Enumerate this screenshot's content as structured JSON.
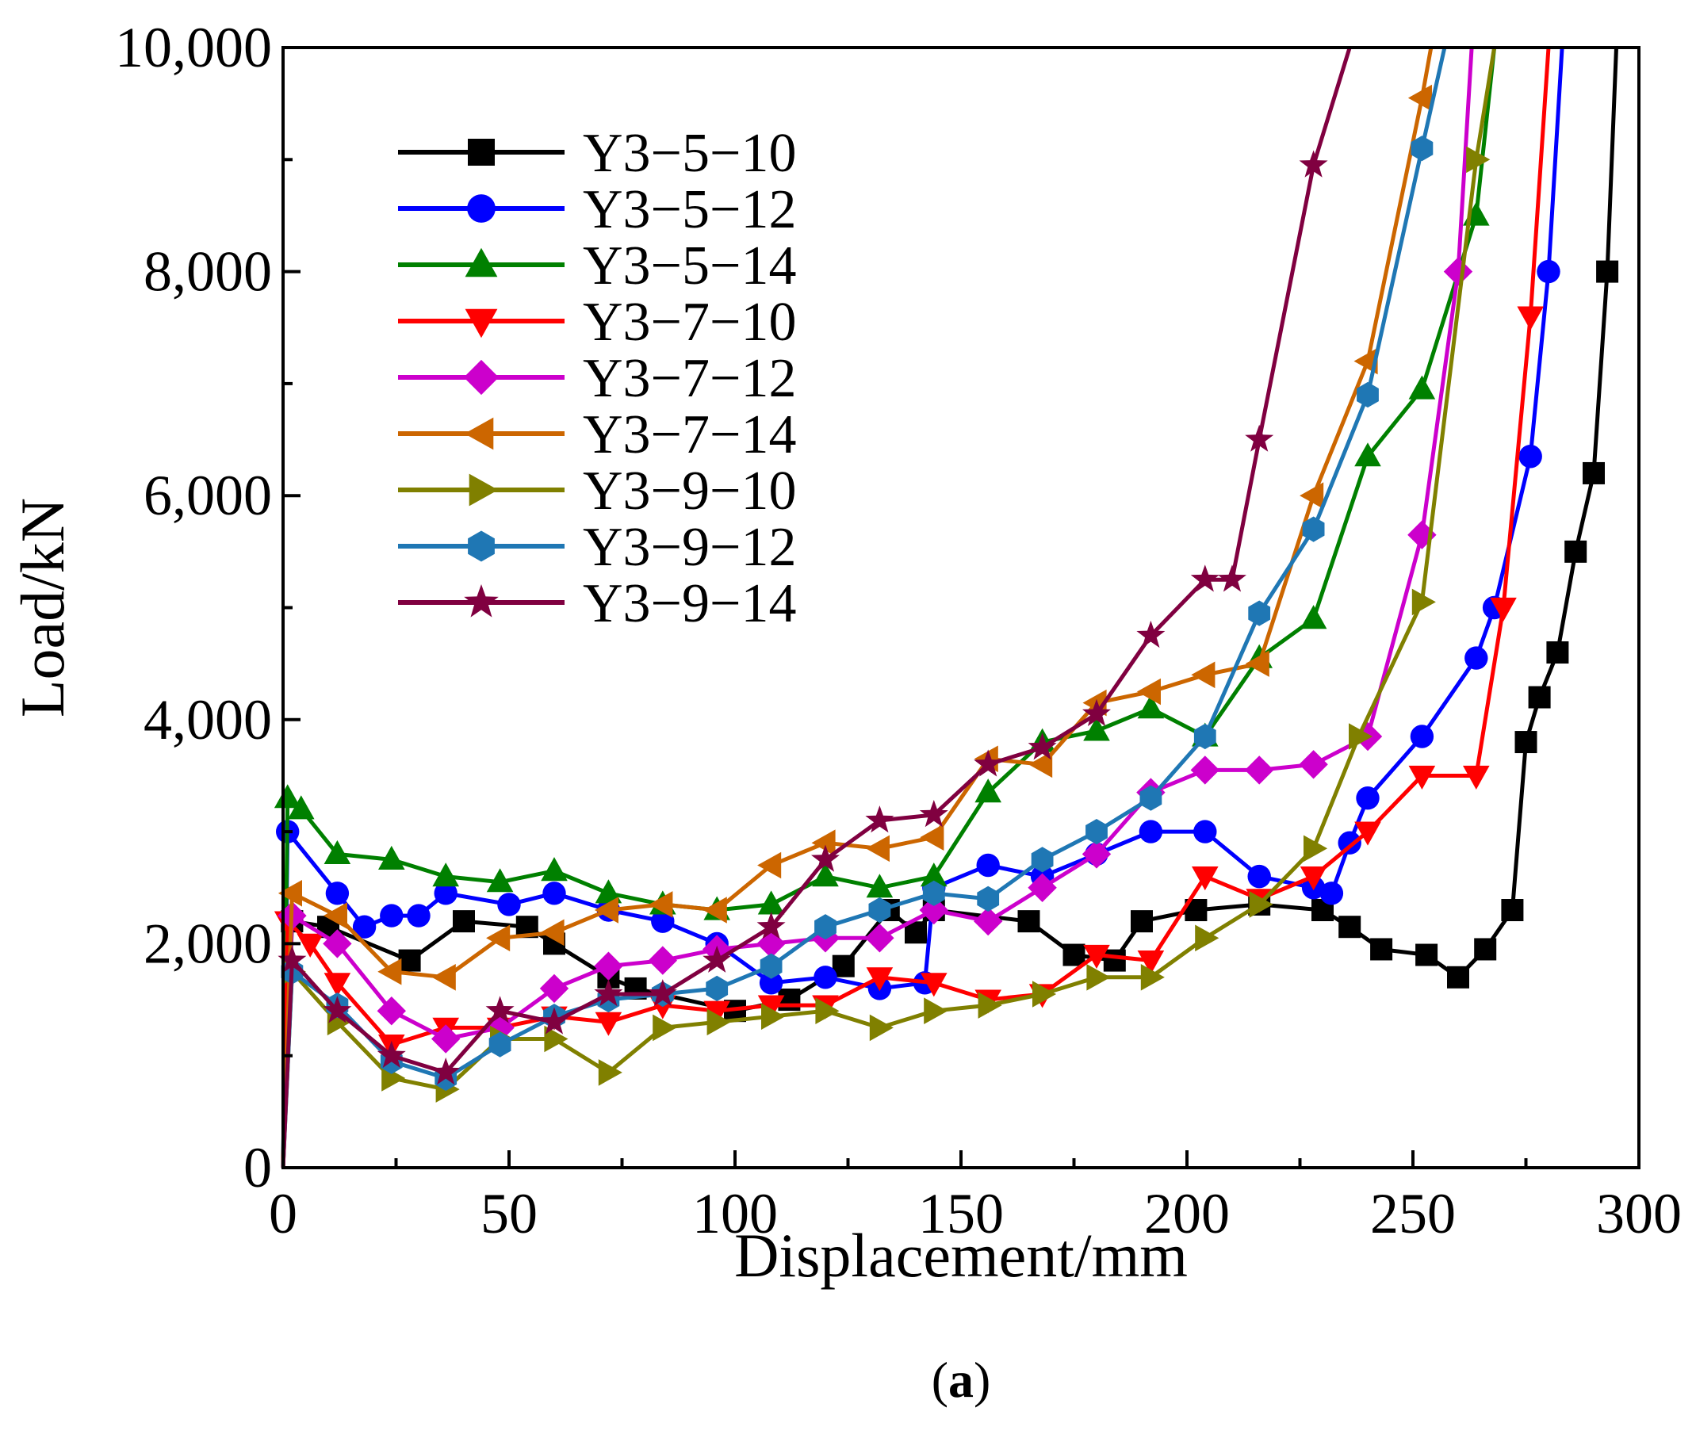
{
  "chart_data": {
    "type": "line",
    "title": "",
    "xlabel": "Displacement/mm",
    "ylabel": "Load/kN",
    "xlim": [
      0,
      300
    ],
    "ylim": [
      0,
      10000
    ],
    "x_ticks": [
      "0",
      "50",
      "100",
      "150",
      "200",
      "250",
      "300"
    ],
    "y_ticks": [
      "0",
      "2,000",
      "4,000",
      "6,000",
      "8,000",
      "10,000"
    ],
    "caption": {
      "open": "(",
      "letter": "a",
      "close": ")"
    },
    "legend_position": "top-left",
    "series": [
      {
        "name": "Y3−5−10",
        "color": "#000000",
        "marker": "square",
        "points": [
          [
            0,
            0
          ],
          [
            2,
            2200
          ],
          [
            10,
            2150
          ],
          [
            28,
            1850
          ],
          [
            40,
            2200
          ],
          [
            54,
            2150
          ],
          [
            60,
            2000
          ],
          [
            72,
            1700
          ],
          [
            78,
            1600
          ],
          [
            100,
            1400
          ],
          [
            112,
            1500
          ],
          [
            124,
            1800
          ],
          [
            134,
            2300
          ],
          [
            140,
            2100
          ],
          [
            144,
            2300
          ],
          [
            165,
            2200
          ],
          [
            175,
            1900
          ],
          [
            184,
            1850
          ],
          [
            190,
            2200
          ],
          [
            202,
            2300
          ],
          [
            216,
            2350
          ],
          [
            230,
            2300
          ],
          [
            236,
            2150
          ],
          [
            243,
            1950
          ],
          [
            253,
            1900
          ],
          [
            260,
            1700
          ],
          [
            266,
            1950
          ],
          [
            272,
            2300
          ],
          [
            275,
            3800
          ],
          [
            278,
            4200
          ],
          [
            282,
            4600
          ],
          [
            286,
            5500
          ],
          [
            290,
            6200
          ],
          [
            293,
            8000
          ],
          [
            295,
            10000
          ]
        ]
      },
      {
        "name": "Y3−5−12",
        "color": "#0000ff",
        "marker": "circle",
        "points": [
          [
            0,
            0
          ],
          [
            1,
            3000
          ],
          [
            12,
            2450
          ],
          [
            18,
            2150
          ],
          [
            24,
            2250
          ],
          [
            30,
            2250
          ],
          [
            36,
            2450
          ],
          [
            50,
            2350
          ],
          [
            60,
            2450
          ],
          [
            72,
            2300
          ],
          [
            84,
            2200
          ],
          [
            96,
            2000
          ],
          [
            108,
            1650
          ],
          [
            120,
            1700
          ],
          [
            132,
            1600
          ],
          [
            142,
            1650
          ],
          [
            144,
            2500
          ],
          [
            156,
            2700
          ],
          [
            168,
            2600
          ],
          [
            180,
            2800
          ],
          [
            192,
            3000
          ],
          [
            204,
            3000
          ],
          [
            216,
            2600
          ],
          [
            228,
            2500
          ],
          [
            232,
            2450
          ],
          [
            236,
            2900
          ],
          [
            240,
            3300
          ],
          [
            252,
            3850
          ],
          [
            264,
            4550
          ],
          [
            268,
            5000
          ],
          [
            276,
            6350
          ],
          [
            280,
            8000
          ],
          [
            283,
            10000
          ]
        ]
      },
      {
        "name": "Y3−5−14",
        "color": "#008000",
        "marker": "triangle-up",
        "points": [
          [
            0,
            0
          ],
          [
            1,
            3300
          ],
          [
            4,
            3200
          ],
          [
            12,
            2800
          ],
          [
            24,
            2750
          ],
          [
            36,
            2600
          ],
          [
            48,
            2550
          ],
          [
            60,
            2650
          ],
          [
            72,
            2450
          ],
          [
            84,
            2350
          ],
          [
            96,
            2300
          ],
          [
            108,
            2350
          ],
          [
            120,
            2600
          ],
          [
            132,
            2500
          ],
          [
            144,
            2600
          ],
          [
            156,
            3350
          ],
          [
            168,
            3800
          ],
          [
            180,
            3900
          ],
          [
            192,
            4100
          ],
          [
            204,
            3850
          ],
          [
            216,
            4550
          ],
          [
            228,
            4900
          ],
          [
            240,
            6350
          ],
          [
            252,
            6950
          ],
          [
            264,
            8500
          ],
          [
            268,
            10000
          ]
        ]
      },
      {
        "name": "Y3−7−10",
        "color": "#ff0000",
        "marker": "triangle-down",
        "points": [
          [
            0,
            0
          ],
          [
            1,
            2200
          ],
          [
            6,
            2000
          ],
          [
            12,
            1650
          ],
          [
            24,
            1100
          ],
          [
            36,
            1250
          ],
          [
            48,
            1250
          ],
          [
            60,
            1350
          ],
          [
            72,
            1300
          ],
          [
            84,
            1450
          ],
          [
            96,
            1400
          ],
          [
            108,
            1450
          ],
          [
            120,
            1450
          ],
          [
            132,
            1700
          ],
          [
            144,
            1650
          ],
          [
            156,
            1500
          ],
          [
            168,
            1550
          ],
          [
            180,
            1900
          ],
          [
            192,
            1850
          ],
          [
            204,
            2600
          ],
          [
            216,
            2400
          ],
          [
            228,
            2600
          ],
          [
            240,
            3000
          ],
          [
            252,
            3500
          ],
          [
            264,
            3500
          ],
          [
            270,
            5000
          ],
          [
            276,
            7600
          ],
          [
            280,
            10000
          ]
        ]
      },
      {
        "name": "Y3−7−12",
        "color": "#cc00cc",
        "marker": "diamond",
        "points": [
          [
            0,
            0
          ],
          [
            2,
            2250
          ],
          [
            12,
            2000
          ],
          [
            24,
            1400
          ],
          [
            36,
            1150
          ],
          [
            48,
            1250
          ],
          [
            60,
            1600
          ],
          [
            72,
            1800
          ],
          [
            84,
            1850
          ],
          [
            96,
            1950
          ],
          [
            108,
            2000
          ],
          [
            120,
            2050
          ],
          [
            132,
            2050
          ],
          [
            144,
            2300
          ],
          [
            156,
            2200
          ],
          [
            168,
            2500
          ],
          [
            180,
            2800
          ],
          [
            192,
            3350
          ],
          [
            204,
            3550
          ],
          [
            216,
            3550
          ],
          [
            228,
            3600
          ],
          [
            240,
            3850
          ],
          [
            252,
            5650
          ],
          [
            260,
            8000
          ],
          [
            263,
            10000
          ]
        ]
      },
      {
        "name": "Y3−7−14",
        "color": "#cc6600",
        "marker": "triangle-left",
        "points": [
          [
            0,
            0
          ],
          [
            2,
            2450
          ],
          [
            12,
            2250
          ],
          [
            24,
            1750
          ],
          [
            36,
            1700
          ],
          [
            48,
            2050
          ],
          [
            60,
            2100
          ],
          [
            72,
            2300
          ],
          [
            84,
            2350
          ],
          [
            96,
            2300
          ],
          [
            108,
            2700
          ],
          [
            120,
            2900
          ],
          [
            132,
            2850
          ],
          [
            144,
            2950
          ],
          [
            156,
            3650
          ],
          [
            168,
            3600
          ],
          [
            180,
            4150
          ],
          [
            192,
            4250
          ],
          [
            204,
            4400
          ],
          [
            216,
            4500
          ],
          [
            228,
            6000
          ],
          [
            240,
            7200
          ],
          [
            252,
            9550
          ],
          [
            254,
            10000
          ]
        ]
      },
      {
        "name": "Y3−9−10",
        "color": "#808000",
        "marker": "triangle-right",
        "points": [
          [
            0,
            0
          ],
          [
            2,
            1750
          ],
          [
            12,
            1300
          ],
          [
            24,
            800
          ],
          [
            36,
            700
          ],
          [
            48,
            1150
          ],
          [
            60,
            1150
          ],
          [
            72,
            850
          ],
          [
            84,
            1250
          ],
          [
            96,
            1300
          ],
          [
            108,
            1350
          ],
          [
            120,
            1400
          ],
          [
            132,
            1250
          ],
          [
            144,
            1400
          ],
          [
            156,
            1450
          ],
          [
            168,
            1550
          ],
          [
            180,
            1700
          ],
          [
            192,
            1700
          ],
          [
            204,
            2050
          ],
          [
            216,
            2350
          ],
          [
            228,
            2850
          ],
          [
            238,
            3850
          ],
          [
            252,
            5050
          ],
          [
            264,
            9000
          ],
          [
            268,
            10000
          ]
        ]
      },
      {
        "name": "Y3−9−12",
        "color": "#1f77b4",
        "marker": "hexagon",
        "points": [
          [
            0,
            0
          ],
          [
            2,
            1750
          ],
          [
            12,
            1450
          ],
          [
            24,
            950
          ],
          [
            36,
            800
          ],
          [
            48,
            1100
          ],
          [
            60,
            1350
          ],
          [
            72,
            1500
          ],
          [
            84,
            1550
          ],
          [
            96,
            1600
          ],
          [
            108,
            1800
          ],
          [
            120,
            2150
          ],
          [
            132,
            2300
          ],
          [
            144,
            2450
          ],
          [
            156,
            2400
          ],
          [
            168,
            2750
          ],
          [
            180,
            3000
          ],
          [
            192,
            3300
          ],
          [
            204,
            3850
          ],
          [
            216,
            4950
          ],
          [
            228,
            5700
          ],
          [
            240,
            6900
          ],
          [
            252,
            9100
          ],
          [
            257,
            10000
          ]
        ]
      },
      {
        "name": "Y3−9−14",
        "color": "#800040",
        "marker": "star",
        "points": [
          [
            0,
            0
          ],
          [
            2,
            1850
          ],
          [
            12,
            1400
          ],
          [
            24,
            1000
          ],
          [
            36,
            850
          ],
          [
            48,
            1400
          ],
          [
            60,
            1300
          ],
          [
            72,
            1550
          ],
          [
            84,
            1550
          ],
          [
            96,
            1850
          ],
          [
            108,
            2150
          ],
          [
            120,
            2750
          ],
          [
            132,
            3100
          ],
          [
            144,
            3150
          ],
          [
            156,
            3600
          ],
          [
            168,
            3750
          ],
          [
            180,
            4050
          ],
          [
            192,
            4750
          ],
          [
            204,
            5250
          ],
          [
            210,
            5250
          ],
          [
            216,
            6500
          ],
          [
            228,
            8950
          ],
          [
            236,
            10000
          ]
        ]
      }
    ]
  }
}
